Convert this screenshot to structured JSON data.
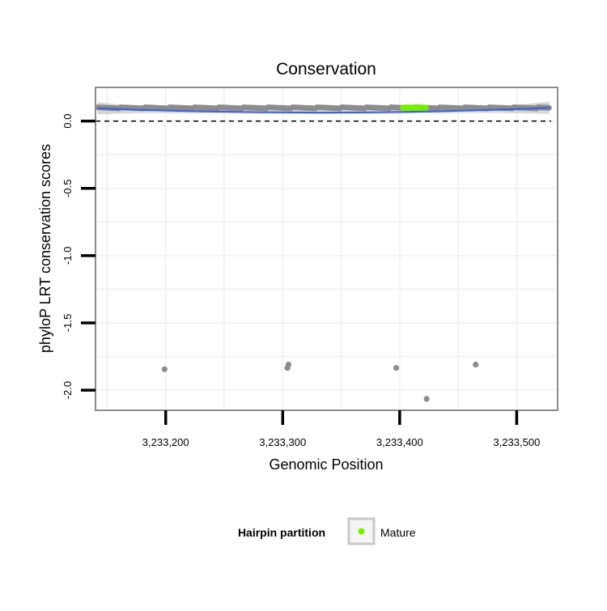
{
  "chart_data": {
    "type": "scatter",
    "title": "Conservation",
    "xlabel": "Genomic Position",
    "ylabel": "phyloP LRT conservation scores",
    "xlim": [
      3233140,
      3233535
    ],
    "ylim": [
      -2.15,
      0.25
    ],
    "x_ticks": [
      3233200,
      3233300,
      3233400,
      3233500
    ],
    "x_tick_labels": [
      "3,233,200",
      "3,233,300",
      "3,233,400",
      "3,233,500"
    ],
    "y_ticks": [
      0.0,
      -0.5,
      -1.0,
      -1.5,
      -2.0
    ],
    "y_tick_labels": [
      "0.0",
      "-0.5",
      "-1.0",
      "-1.5",
      "-2.0"
    ],
    "reference_line": {
      "y": 0.0,
      "style": "dashed"
    },
    "grid": true,
    "legend": {
      "title": "Hairpin partition",
      "position": "bottom",
      "entries": [
        {
          "label": "Mature",
          "color": "#76ee00"
        }
      ]
    },
    "colors": {
      "points": "#8c8c8c",
      "mature": "#76ee00",
      "smooth": "#3a5fe0",
      "ribbon": "#c8c8c8",
      "panel_border": "#8c8c8c",
      "grid": "#f2f2f2"
    },
    "series": [
      {
        "x_start": 3233142,
        "x_end": 3233528,
        "y": 0.098
      },
      {
        "name": "Mature",
        "x_start": 3233403,
        "x_end": 3233422,
        "y": 0.098
      },
      {
        "points": [
          {
            "x": 3233199,
            "y": -1.845
          },
          {
            "x": 3233304,
            "y": -1.835
          },
          {
            "x": 3233305,
            "y": -1.81
          },
          {
            "x": 3233397,
            "y": -1.835
          },
          {
            "x": 3233423,
            "y": -2.065
          },
          {
            "x": 3233465,
            "y": -1.81
          }
        ]
      },
      {
        "x": [
          3233142,
          3233180,
          3233230,
          3233280,
          3233330,
          3233380,
          3233430,
          3233480,
          3233528
        ],
        "y": [
          0.095,
          0.082,
          0.072,
          0.066,
          0.063,
          0.065,
          0.072,
          0.083,
          0.098
        ],
        "ribbon_halfwidth": [
          0.045,
          0.022,
          0.014,
          0.012,
          0.012,
          0.012,
          0.014,
          0.022,
          0.045
        ]
      }
    ]
  }
}
